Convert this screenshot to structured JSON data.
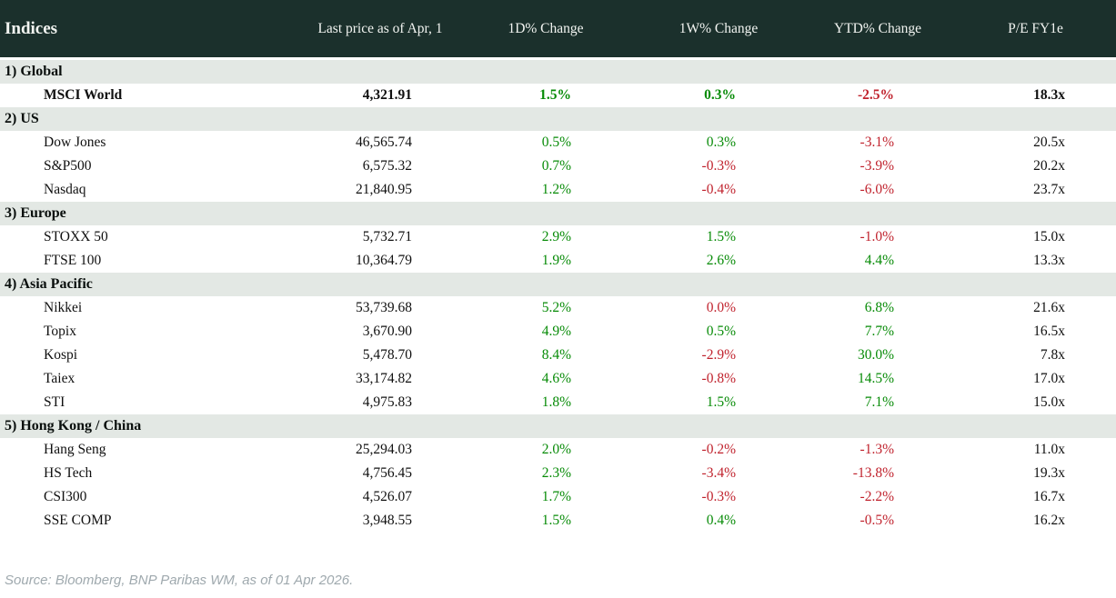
{
  "chart_data": {
    "type": "table",
    "title": "Indices",
    "columns": [
      "Last price as of Apr, 1",
      "1D% Change",
      "1W% Change",
      "YTD% Change",
      "P/E FY1e"
    ],
    "sections": [
      {
        "label": "1) Global",
        "rows": [
          {
            "name": "MSCI World",
            "bold": true,
            "price": "4,321.91",
            "changes": [
              [
                "1.5%",
                "pos"
              ],
              [
                "0.3%",
                "pos"
              ],
              [
                "-2.5%",
                "neg"
              ]
            ],
            "pe": "18.3x"
          }
        ]
      },
      {
        "label": "2) US",
        "rows": [
          {
            "name": "Dow Jones",
            "price": "46,565.74",
            "changes": [
              [
                "0.5%",
                "pos"
              ],
              [
                "0.3%",
                "pos"
              ],
              [
                "-3.1%",
                "neg"
              ]
            ],
            "pe": "20.5x"
          },
          {
            "name": "S&P500",
            "price": "6,575.32",
            "changes": [
              [
                "0.7%",
                "pos"
              ],
              [
                "-0.3%",
                "neg"
              ],
              [
                "-3.9%",
                "neg"
              ]
            ],
            "pe": "20.2x"
          },
          {
            "name": "Nasdaq",
            "price": "21,840.95",
            "changes": [
              [
                "1.2%",
                "pos"
              ],
              [
                "-0.4%",
                "neg"
              ],
              [
                "-6.0%",
                "neg"
              ]
            ],
            "pe": "23.7x"
          }
        ]
      },
      {
        "label": "3) Europe",
        "rows": [
          {
            "name": "STOXX 50",
            "price": "5,732.71",
            "changes": [
              [
                "2.9%",
                "pos"
              ],
              [
                "1.5%",
                "pos"
              ],
              [
                "-1.0%",
                "neg"
              ]
            ],
            "pe": "15.0x"
          },
          {
            "name": "FTSE 100",
            "price": "10,364.79",
            "changes": [
              [
                "1.9%",
                "pos"
              ],
              [
                "2.6%",
                "pos"
              ],
              [
                "4.4%",
                "pos"
              ]
            ],
            "pe": "13.3x"
          }
        ]
      },
      {
        "label": "4) Asia Pacific",
        "rows": [
          {
            "name": "Nikkei",
            "price": "53,739.68",
            "changes": [
              [
                "5.2%",
                "pos"
              ],
              [
                "0.0%",
                "neg"
              ],
              [
                "6.8%",
                "pos"
              ]
            ],
            "pe": "21.6x"
          },
          {
            "name": "Topix",
            "price": "3,670.90",
            "changes": [
              [
                "4.9%",
                "pos"
              ],
              [
                "0.5%",
                "pos"
              ],
              [
                "7.7%",
                "pos"
              ]
            ],
            "pe": "16.5x"
          },
          {
            "name": "Kospi",
            "price": "5,478.70",
            "changes": [
              [
                "8.4%",
                "pos"
              ],
              [
                "-2.9%",
                "neg"
              ],
              [
                "30.0%",
                "pos"
              ]
            ],
            "pe": "7.8x"
          },
          {
            "name": "Taiex",
            "price": "33,174.82",
            "changes": [
              [
                "4.6%",
                "pos"
              ],
              [
                "-0.8%",
                "neg"
              ],
              [
                "14.5%",
                "pos"
              ]
            ],
            "pe": "17.0x"
          },
          {
            "name": "STI",
            "price": "4,975.83",
            "changes": [
              [
                "1.8%",
                "pos"
              ],
              [
                "1.5%",
                "pos"
              ],
              [
                "7.1%",
                "pos"
              ]
            ],
            "pe": "15.0x"
          }
        ]
      },
      {
        "label": "5) Hong Kong / China",
        "rows": [
          {
            "name": "Hang Seng",
            "price": "25,294.03",
            "changes": [
              [
                "2.0%",
                "pos"
              ],
              [
                "-0.2%",
                "neg"
              ],
              [
                "-1.3%",
                "neg"
              ]
            ],
            "pe": "11.0x"
          },
          {
            "name": "HS Tech",
            "price": "4,756.45",
            "changes": [
              [
                "2.3%",
                "pos"
              ],
              [
                "-3.4%",
                "neg"
              ],
              [
                "-13.8%",
                "neg"
              ]
            ],
            "pe": "19.3x"
          },
          {
            "name": "CSI300",
            "price": "4,526.07",
            "changes": [
              [
                "1.7%",
                "pos"
              ],
              [
                "-0.3%",
                "neg"
              ],
              [
                "-2.2%",
                "neg"
              ]
            ],
            "pe": "16.7x"
          },
          {
            "name": "SSE COMP",
            "price": "3,948.55",
            "changes": [
              [
                "1.5%",
                "pos"
              ],
              [
                "0.4%",
                "pos"
              ],
              [
                "-0.5%",
                "neg"
              ]
            ],
            "pe": "16.2x"
          }
        ]
      }
    ]
  },
  "footer": {
    "source": "Source: Bloomberg, BNP Paribas WM, as of 01 Apr 2026."
  },
  "colors": {
    "positive": "#078b07",
    "negative": "#c0222d",
    "header_bg": "#1b302c",
    "section_bg": "#e3e8e4"
  }
}
